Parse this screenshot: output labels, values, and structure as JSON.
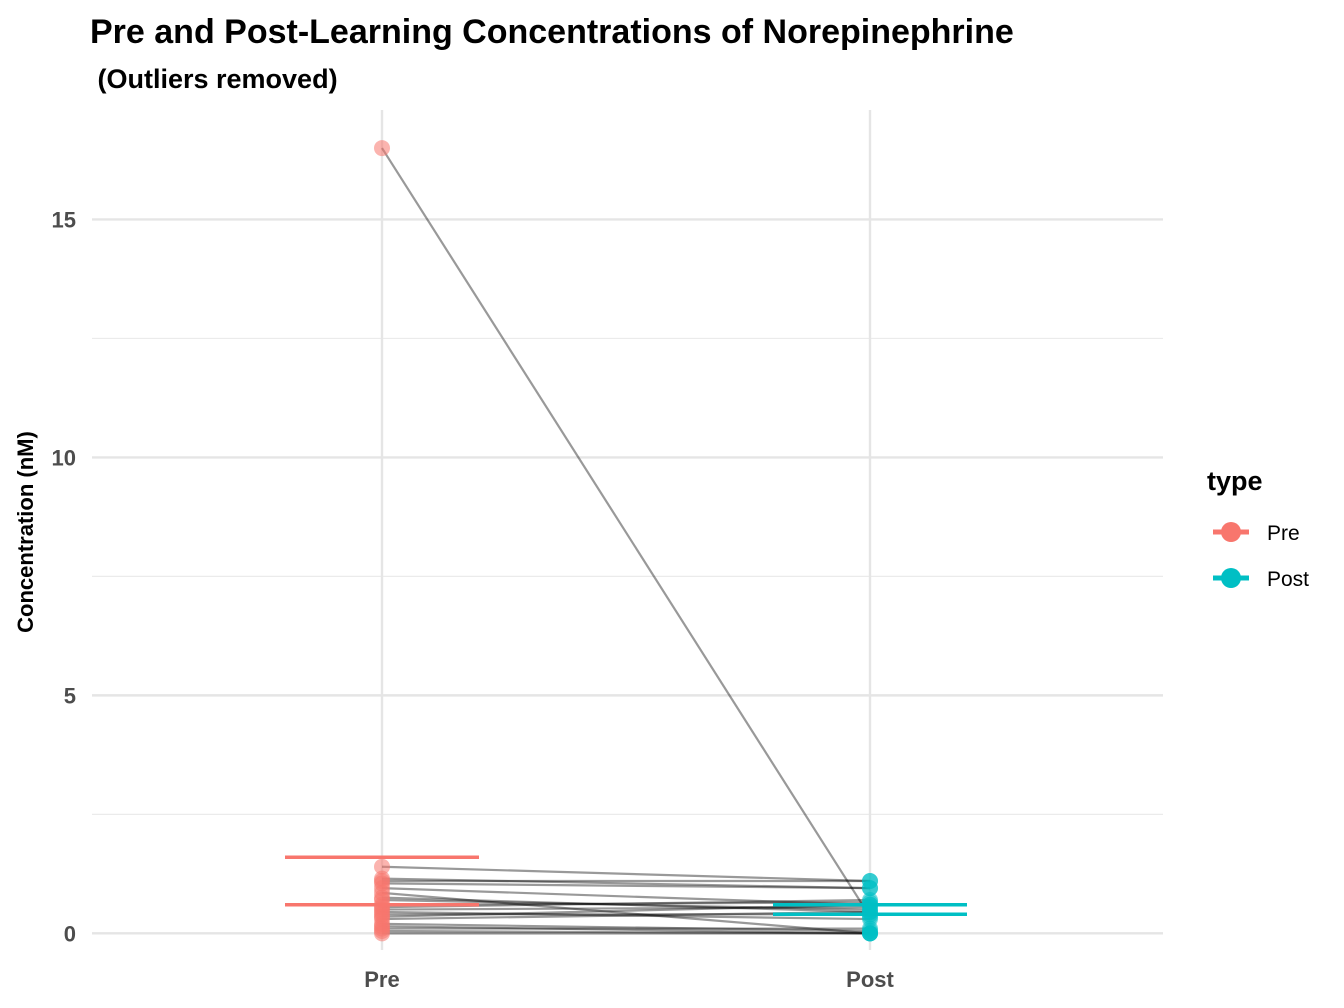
{
  "chart_data": {
    "type": "scatter",
    "title": "Pre and Post-Learning Concentrations of Norepinephrine",
    "subtitle": " (Outliers removed)",
    "xlabel": "",
    "ylabel": "Concentration (nM)",
    "categories": [
      "Pre",
      "Post"
    ],
    "ylim": [
      -0.35,
      17.3
    ],
    "y_ticks": [
      0,
      5,
      10,
      15
    ],
    "y_tick_labels": [
      "0",
      "5",
      "10",
      "15"
    ],
    "grid": true,
    "legend": {
      "title": "type",
      "position": "right",
      "entries": [
        "Pre",
        "Post"
      ]
    },
    "colors": {
      "Pre": "#F8766D",
      "Post": "#00BFC4",
      "lines": "#000000"
    },
    "series": [
      {
        "name": "Pre",
        "values": [
          16.5,
          1.4,
          1.15,
          1.1,
          1.05,
          0.95,
          0.85,
          0.75,
          0.7,
          0.6,
          0.55,
          0.5,
          0.45,
          0.4,
          0.35,
          0.3,
          0.2,
          0.15,
          0.1,
          0.05,
          0.0
        ]
      },
      {
        "name": "Post",
        "values": [
          0.35,
          1.1,
          0.95,
          1.1,
          0.95,
          0.6,
          0.0,
          0.45,
          0.5,
          0.65,
          0.7,
          0.55,
          0.3,
          0.4,
          0.6,
          0.45,
          0.05,
          0.0,
          0.1,
          0.0,
          0.0
        ]
      }
    ],
    "error_bars": [
      {
        "name": "Pre",
        "low": 0.6,
        "high": 1.6
      },
      {
        "name": "Post",
        "low": 0.4,
        "high": 0.6
      }
    ]
  }
}
